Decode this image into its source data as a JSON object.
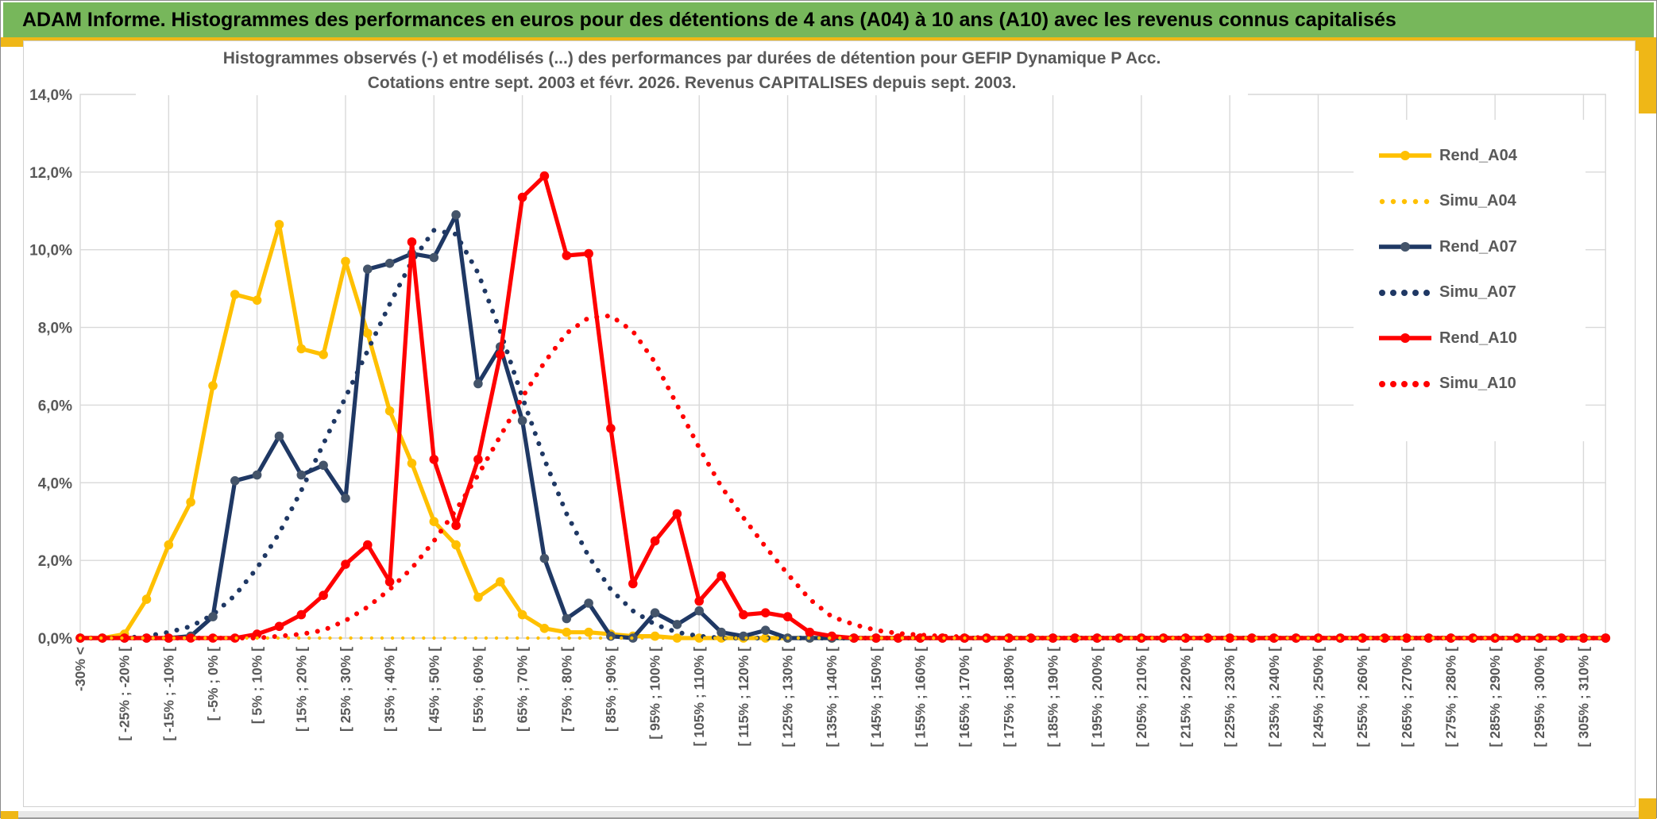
{
  "header": {
    "title": "ADAM Informe. Histogrammes des performances en euros pour des détentions de 4 ans (A04) à 10 ans (A10) avec les revenus connus capitalisés",
    "bar_color": "#77b75b",
    "accent_color": "#efb717"
  },
  "chart": {
    "title_line1": "Histogrammes observés (-) et modélisés (...) des performances par durées de détention pour GEFIP Dynamique P Acc.",
    "title_line2": "Cotations entre sept. 2003 et févr. 2026. Revenus CAPITALISES depuis sept. 2003.",
    "text_color": "#595959",
    "grid_color": "#d9d9d9"
  },
  "legend": {
    "position": "right",
    "items": [
      {
        "label": "Rend_A04",
        "color": "#ffc000",
        "style": "solid"
      },
      {
        "label": "Simu_A04",
        "color": "#ffc000",
        "style": "dotted"
      },
      {
        "label": "Rend_A07",
        "color": "#1f3864",
        "style": "solid"
      },
      {
        "label": "Simu_A07",
        "color": "#1f3864",
        "style": "dotted"
      },
      {
        "label": "Rend_A10",
        "color": "#ff0000",
        "style": "solid"
      },
      {
        "label": "Simu_A10",
        "color": "#ff0000",
        "style": "dotted"
      }
    ]
  },
  "chart_data": {
    "type": "line",
    "title": "Histogrammes observés (-) et modélisés (...) des performances par durées de détention pour GEFIP Dynamique P Acc.",
    "subtitle": "Cotations entre sept. 2003 et févr. 2026. Revenus CAPITALISES depuis sept. 2003.",
    "xlabel": "",
    "ylabel": "",
    "ylim": [
      0,
      14
    ],
    "y_tick_labels": [
      "0,0%",
      "2,0%",
      "4,0%",
      "6,0%",
      "8,0%",
      "10,0%",
      "12,0%",
      "14,0%"
    ],
    "grid": true,
    "bin_count": 70,
    "bin_width_pct": 5,
    "note": "70 bins of 5% from <-30% to [310;315[; axis labels shown on every other bin",
    "categories": [
      "-30% <",
      "[ -25% ; -20% [",
      "[ -15% ; -10% [",
      "[ -5% ; 0% [",
      "[ 5% ; 10% [",
      "[ 15% ; 20% [",
      "[ 25% ; 30% [",
      "[ 35% ; 40% [",
      "[ 45% ; 50% [",
      "[ 55% ; 60% [",
      "[ 65% ; 70% [",
      "[ 75% ; 80% [",
      "[ 85% ; 90% [",
      "[ 95% ; 100% [",
      "[ 105% ; 110% [",
      "[ 115% ; 120% [",
      "[ 125% ; 130% [",
      "[ 135% ; 140% [",
      "[ 145% ; 150% [",
      "[ 155% ; 160% [",
      "[ 165% ; 170% [",
      "[ 175% ; 180% [",
      "[ 185% ; 190% [",
      "[ 195% ; 200% [",
      "[ 205% ; 210% [",
      "[ 215% ; 220% [",
      "[ 225% ; 230% [",
      "[ 235% ; 240% [",
      "[ 245% ; 250% [",
      "[ 255% ; 260% [",
      "[ 265% ; 270% [",
      "[ 275% ; 280% [",
      "[ 285% ; 290% [",
      "[ 295% ; 300% [",
      "[ 305% ; 310% ["
    ],
    "series": [
      {
        "name": "Rend_A04",
        "color": "#ffc000",
        "marker_color": "#ffc000",
        "style": "solid",
        "markers": true,
        "values": [
          0,
          0,
          0.1,
          1,
          2.4,
          3.5,
          6.5,
          8.85,
          8.7,
          10.65,
          7.45,
          7.3,
          9.7,
          7.85,
          5.85,
          4.5,
          3,
          2.4,
          1.05,
          1.45,
          0.6,
          0.25,
          0.15,
          0.15,
          0.1,
          0.05,
          0.05,
          0,
          0,
          0,
          0,
          0,
          0,
          0,
          0,
          0,
          0,
          0,
          0,
          0,
          0,
          0,
          0,
          0,
          0,
          0,
          0,
          0,
          0,
          0,
          0,
          0,
          0,
          0,
          0,
          0,
          0,
          0,
          0,
          0,
          0,
          0,
          0,
          0,
          0,
          0,
          0,
          0,
          0,
          0
        ]
      },
      {
        "name": "Simu_A07",
        "color": "#1f3864",
        "marker_color": "#1f3864",
        "style": "dotted",
        "markers": false,
        "values": [
          0,
          0,
          0,
          0.05,
          0.15,
          0.3,
          0.6,
          1.1,
          1.8,
          2.7,
          3.8,
          5,
          6.2,
          7.4,
          8.6,
          9.7,
          10.5,
          10.4,
          9.4,
          7.9,
          6.2,
          4.6,
          3.2,
          2.1,
          1.25,
          0.7,
          0.35,
          0.15,
          0.05,
          0,
          0,
          0,
          0,
          0,
          0,
          0,
          0,
          0,
          0,
          0,
          0,
          0,
          0,
          0,
          0,
          0,
          0,
          0,
          0,
          0,
          0,
          0,
          0,
          0,
          0,
          0,
          0,
          0,
          0,
          0,
          0,
          0,
          0,
          0,
          0,
          0,
          0,
          0,
          0,
          0
        ]
      },
      {
        "name": "Rend_A07",
        "color": "#1f3864",
        "marker_color": "#44546a",
        "style": "solid",
        "markers": true,
        "values": [
          0,
          0,
          0,
          0,
          0,
          0.05,
          0.55,
          4.05,
          4.2,
          5.2,
          4.2,
          4.45,
          3.6,
          9.5,
          9.65,
          9.9,
          9.8,
          10.9,
          6.55,
          7.5,
          5.6,
          2.05,
          0.5,
          0.9,
          0.05,
          0,
          0.65,
          0.35,
          0.7,
          0.15,
          0.05,
          0.2,
          0,
          0,
          0,
          0,
          0,
          0,
          0,
          0,
          0,
          0,
          0,
          0,
          0,
          0,
          0,
          0,
          0,
          0,
          0,
          0,
          0,
          0,
          0,
          0,
          0,
          0,
          0,
          0,
          0,
          0,
          0,
          0,
          0,
          0,
          0,
          0,
          0,
          0
        ]
      },
      {
        "name": "Simu_A10",
        "color": "#ff0000",
        "marker_color": "#ff0000",
        "style": "dotted",
        "markers": false,
        "values": [
          0,
          0,
          0,
          0,
          0,
          0,
          0,
          0,
          0,
          0.05,
          0.1,
          0.2,
          0.45,
          0.8,
          1.25,
          1.8,
          2.5,
          3.3,
          4.2,
          5.2,
          6.2,
          7.1,
          7.85,
          8.25,
          8.3,
          7.9,
          7.1,
          6,
          4.9,
          3.9,
          3.1,
          2.35,
          1.65,
          1,
          0.55,
          0.35,
          0.2,
          0.12,
          0.08,
          0.05,
          0.03,
          0,
          0,
          0,
          0,
          0,
          0,
          0,
          0,
          0,
          0,
          0,
          0,
          0,
          0,
          0,
          0,
          0,
          0,
          0,
          0,
          0,
          0,
          0,
          0,
          0,
          0,
          0,
          0,
          0
        ]
      },
      {
        "name": "Rend_A10",
        "color": "#ff0000",
        "marker_color": "#ff0000",
        "style": "solid",
        "markers": true,
        "values": [
          0,
          0,
          0,
          0,
          0,
          0,
          0,
          0,
          0.1,
          0.3,
          0.6,
          1.1,
          1.9,
          2.4,
          1.45,
          10.2,
          4.6,
          2.9,
          4.6,
          7.3,
          11.35,
          11.9,
          9.85,
          9.9,
          5.4,
          1.4,
          2.5,
          3.2,
          0.95,
          1.6,
          0.6,
          0.65,
          0.55,
          0.15,
          0.05,
          0,
          0,
          0,
          0,
          0,
          0,
          0,
          0,
          0,
          0,
          0,
          0,
          0,
          0,
          0,
          0,
          0,
          0,
          0,
          0,
          0,
          0,
          0,
          0,
          0,
          0,
          0,
          0,
          0,
          0,
          0,
          0,
          0,
          0,
          0
        ]
      },
      {
        "name": "Simu_A04",
        "color": "#ffc000",
        "marker_color": "#ffc000",
        "style": "dotted",
        "markers": false,
        "values": [
          0,
          0,
          0,
          0,
          0,
          0,
          0,
          0,
          0,
          0,
          0,
          0,
          0,
          0,
          0,
          0,
          0,
          0,
          0,
          0,
          0,
          0,
          0,
          0,
          0,
          0,
          0,
          0,
          0,
          0,
          0,
          0,
          0,
          0,
          0,
          0,
          0,
          0,
          0,
          0,
          0,
          0,
          0,
          0,
          0,
          0,
          0,
          0,
          0,
          0,
          0,
          0,
          0,
          0,
          0,
          0,
          0,
          0,
          0,
          0,
          0,
          0,
          0,
          0,
          0,
          0,
          0,
          0,
          0,
          0
        ]
      }
    ]
  }
}
